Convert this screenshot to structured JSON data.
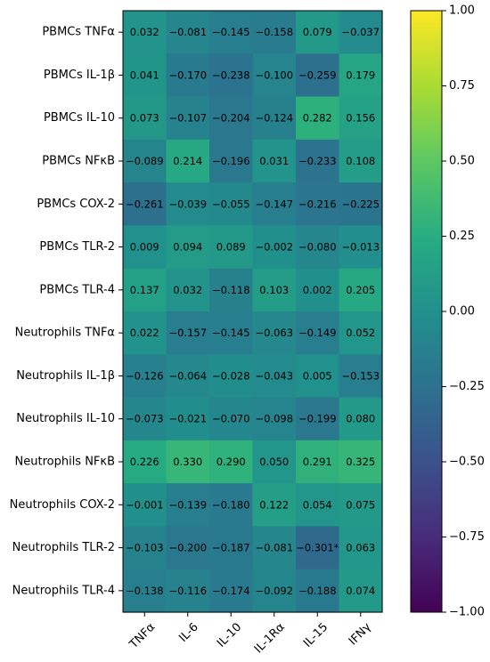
{
  "chart_data": {
    "type": "heatmap",
    "title": "",
    "xlabel": "",
    "ylabel": "",
    "x_categories": [
      "TNFα",
      "IL-6",
      "IL-10",
      "IL-1Rα",
      "IL-15",
      "IFNγ"
    ],
    "y_categories": [
      "PBMCs TNFα",
      "PBMCs IL-1β",
      "PBMCs IL-10",
      "PBMCs NFκB",
      "PBMCs COX-2",
      "PBMCs TLR-2",
      "PBMCs TLR-4",
      "Neutrophils TNFα",
      "Neutrophils IL-1β",
      "Neutrophils IL-10",
      "Neutrophils NFκB",
      "Neutrophils COX-2",
      "Neutrophils TLR-2",
      "Neutrophils TLR-4"
    ],
    "values": [
      [
        0.032,
        -0.081,
        -0.145,
        -0.158,
        0.079,
        -0.037
      ],
      [
        0.041,
        -0.17,
        -0.238,
        -0.1,
        -0.259,
        0.179
      ],
      [
        0.073,
        -0.107,
        -0.204,
        -0.124,
        0.282,
        0.156
      ],
      [
        -0.089,
        0.214,
        -0.196,
        0.031,
        -0.233,
        0.108
      ],
      [
        -0.261,
        -0.039,
        -0.055,
        -0.147,
        -0.216,
        -0.225
      ],
      [
        0.009,
        0.094,
        0.089,
        -0.002,
        -0.08,
        -0.013
      ],
      [
        0.137,
        0.032,
        -0.118,
        0.103,
        0.002,
        0.205
      ],
      [
        0.022,
        -0.157,
        -0.145,
        -0.063,
        -0.149,
        0.052
      ],
      [
        -0.126,
        -0.064,
        -0.028,
        -0.043,
        0.005,
        -0.153
      ],
      [
        -0.073,
        -0.021,
        -0.07,
        -0.098,
        -0.199,
        0.08
      ],
      [
        0.226,
        0.33,
        0.29,
        0.05,
        0.291,
        0.325
      ],
      [
        -0.001,
        -0.139,
        -0.18,
        0.122,
        0.054,
        0.075
      ],
      [
        -0.103,
        -0.2,
        -0.187,
        -0.081,
        -0.301,
        0.063
      ],
      [
        -0.138,
        -0.116,
        -0.174,
        -0.092,
        -0.188,
        0.074
      ]
    ],
    "labels": [
      [
        "0.032",
        "−0.081",
        "−0.145",
        "−0.158",
        "0.079",
        "−0.037"
      ],
      [
        "0.041",
        "−0.170",
        "−0.238",
        "−0.100",
        "−0.259",
        "0.179"
      ],
      [
        "0.073",
        "−0.107",
        "−0.204",
        "−0.124",
        "0.282",
        "0.156"
      ],
      [
        "−0.089",
        "0.214",
        "−0.196",
        "0.031",
        "−0.233",
        "0.108"
      ],
      [
        "−0.261",
        "−0.039",
        "−0.055",
        "−0.147",
        "−0.216",
        "−0.225"
      ],
      [
        "0.009",
        "0.094",
        "0.089",
        "−0.002",
        "−0.080",
        "−0.013"
      ],
      [
        "0.137",
        "0.032",
        "−0.118",
        "0.103",
        "0.002",
        "0.205"
      ],
      [
        "0.022",
        "−0.157",
        "−0.145",
        "−0.063",
        "−0.149",
        "0.052"
      ],
      [
        "−0.126",
        "−0.064",
        "−0.028",
        "−0.043",
        "0.005",
        "−0.153"
      ],
      [
        "−0.073",
        "−0.021",
        "−0.070",
        "−0.098",
        "−0.199",
        "0.080"
      ],
      [
        "0.226",
        "0.330",
        "0.290",
        "0.050",
        "0.291",
        "0.325"
      ],
      [
        "−0.001",
        "−0.139",
        "−0.180",
        "0.122",
        "0.054",
        "0.075"
      ],
      [
        "−0.103",
        "−0.200",
        "−0.187",
        "−0.081",
        "−0.301*",
        "0.063"
      ],
      [
        "−0.138",
        "−0.116",
        "−0.174",
        "−0.092",
        "−0.188",
        "0.074"
      ]
    ],
    "colormap": "viridis",
    "vmin": -1.0,
    "vmax": 1.0,
    "colorbar_ticks": [
      1.0,
      0.75,
      0.5,
      0.25,
      0.0,
      -0.25,
      -0.5,
      -0.75,
      -1.0
    ],
    "colorbar_tick_labels": [
      "1.00",
      "0.75",
      "0.50",
      "0.25",
      "0.00",
      "−0.25",
      "−0.50",
      "−0.75",
      "−1.00"
    ]
  }
}
